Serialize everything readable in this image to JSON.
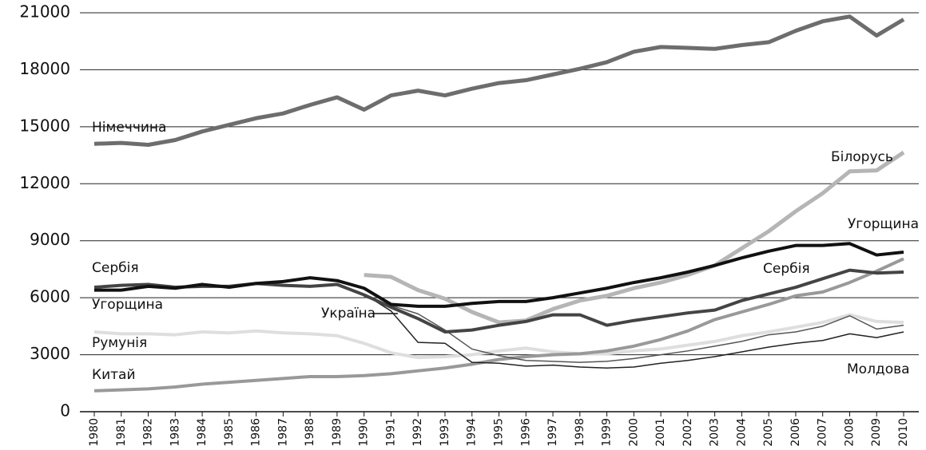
{
  "chart_data": {
    "type": "line",
    "x": [
      1980,
      1981,
      1982,
      1983,
      1984,
      1985,
      1986,
      1987,
      1988,
      1989,
      1990,
      1991,
      1992,
      1993,
      1994,
      1995,
      1996,
      1997,
      1998,
      1999,
      2000,
      2001,
      2002,
      2003,
      2004,
      2005,
      2006,
      2007,
      2008,
      2009,
      2010
    ],
    "ylim": [
      0,
      21000
    ],
    "yticks": [
      0,
      3000,
      6000,
      9000,
      12000,
      15000,
      18000,
      21000
    ],
    "grid": true,
    "series": [
      {
        "name": "Німеччина",
        "color": "#6d6d6d",
        "values": [
          14100,
          14150,
          14050,
          14300,
          14750,
          15100,
          15450,
          15700,
          16150,
          16550,
          15900,
          16650,
          16900,
          16650,
          17000,
          17300,
          17450,
          17750,
          18050,
          18400,
          18950,
          19200,
          19150,
          19100,
          19300,
          19450,
          20050,
          20550,
          20800,
          19800,
          20650
        ]
      },
      {
        "name": "Білорусь",
        "color": "#b5b5b5",
        "values": [
          null,
          null,
          null,
          null,
          null,
          null,
          null,
          null,
          null,
          null,
          7200,
          7100,
          6400,
          5950,
          5250,
          4700,
          4800,
          5400,
          5850,
          6100,
          6500,
          6800,
          7200,
          7700,
          8600,
          9500,
          10550,
          11500,
          12650,
          12700,
          13650
        ]
      },
      {
        "name": "Угорщина",
        "color": "#111111",
        "values": [
          6400,
          6400,
          6600,
          6500,
          6700,
          6550,
          6750,
          6850,
          7050,
          6900,
          6500,
          5650,
          5550,
          5550,
          5700,
          5800,
          5800,
          6000,
          6250,
          6500,
          6800,
          7050,
          7350,
          7700,
          8100,
          8450,
          8750,
          8750,
          8850,
          8250,
          8400
        ]
      },
      {
        "name": "Сербія",
        "color": "#444444",
        "values": [
          6550,
          6650,
          6700,
          6550,
          6600,
          6600,
          6750,
          6650,
          6600,
          6700,
          6150,
          5500,
          4900,
          4200,
          4300,
          4550,
          4750,
          5100,
          5100,
          4550,
          4800,
          5000,
          5200,
          5350,
          5850,
          6200,
          6550,
          7000,
          7450,
          7300,
          7350
        ]
      },
      {
        "name": "Україна",
        "color": "#222222",
        "values": [
          null,
          null,
          null,
          null,
          null,
          null,
          null,
          null,
          null,
          null,
          6200,
          5300,
          3650,
          3600,
          2600,
          2550,
          2400,
          2450,
          2350,
          2300,
          2350,
          2550,
          2700,
          2900,
          3150,
          3400,
          3600,
          3750,
          4100,
          3900,
          4200
        ]
      },
      {
        "name": "Молдова",
        "color": "#555555",
        "values": [
          null,
          null,
          null,
          null,
          null,
          null,
          null,
          null,
          null,
          null,
          6050,
          5600,
          5150,
          4300,
          3300,
          2950,
          2700,
          2650,
          2600,
          2650,
          2800,
          3000,
          3200,
          3450,
          3700,
          4050,
          4200,
          4500,
          5050,
          4350,
          4550
        ]
      },
      {
        "name": "Румунія",
        "color": "#dedede",
        "values": [
          4200,
          4100,
          4100,
          4050,
          4200,
          4150,
          4250,
          4150,
          4100,
          4000,
          3600,
          3100,
          2850,
          2900,
          3000,
          3200,
          3350,
          3150,
          3050,
          3050,
          3200,
          3300,
          3500,
          3700,
          4000,
          4200,
          4450,
          4700,
          5100,
          4750,
          4700
        ]
      },
      {
        "name": "Китай",
        "color": "#999999",
        "values": [
          1100,
          1150,
          1200,
          1300,
          1450,
          1550,
          1650,
          1750,
          1850,
          1850,
          1900,
          2000,
          2150,
          2300,
          2500,
          2750,
          2900,
          3000,
          3050,
          3200,
          3450,
          3800,
          4250,
          4850,
          5250,
          5650,
          6100,
          6300,
          6800,
          7400,
          8050
        ]
      }
    ]
  }
}
